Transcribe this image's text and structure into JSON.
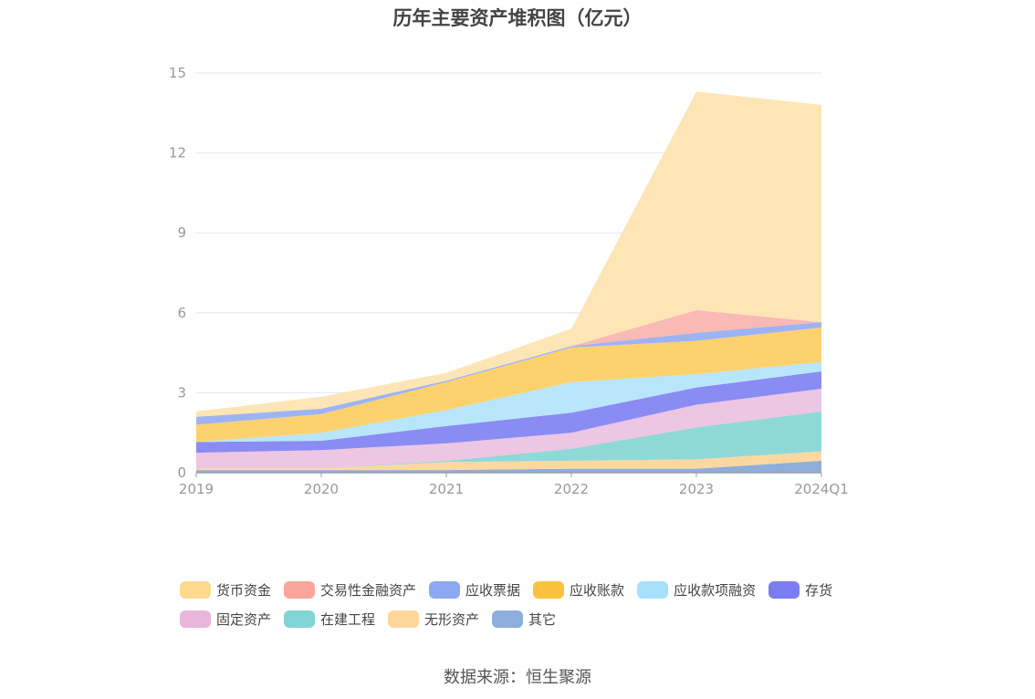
{
  "chart_data": {
    "type": "area",
    "stacked": true,
    "title": "历年主要资产堆积图（亿元）",
    "categories": [
      "2019",
      "2020",
      "2021",
      "2022",
      "2023",
      "2024Q1"
    ],
    "y_ticks": [
      0,
      3,
      6,
      9,
      12,
      15
    ],
    "ylim": [
      0,
      15
    ],
    "grid": true,
    "legend_position": "bottom",
    "series": [
      {
        "name": "其它",
        "color": "#8eaedb",
        "values": [
          0.1,
          0.1,
          0.1,
          0.15,
          0.15,
          0.45
        ]
      },
      {
        "name": "无形资产",
        "color": "#fcd8a0",
        "values": [
          0.05,
          0.05,
          0.3,
          0.3,
          0.35,
          0.35
        ]
      },
      {
        "name": "在建工程",
        "color": "#8fd9d8",
        "values": [
          0.0,
          0.0,
          0.05,
          0.45,
          1.2,
          1.5
        ]
      },
      {
        "name": "固定资产",
        "color": "#ecc6e2",
        "values": [
          0.6,
          0.7,
          0.65,
          0.6,
          0.85,
          0.85
        ]
      },
      {
        "name": "存货",
        "color": "#8a8cf3",
        "values": [
          0.4,
          0.35,
          0.65,
          0.75,
          0.65,
          0.65
        ]
      },
      {
        "name": "应收款项融资",
        "color": "#b8e6fb",
        "values": [
          0.0,
          0.3,
          0.6,
          1.15,
          0.5,
          0.35
        ]
      },
      {
        "name": "应收账款",
        "color": "#fdd26e",
        "values": [
          0.65,
          0.7,
          1.05,
          1.3,
          1.25,
          1.3
        ]
      },
      {
        "name": "应收票据",
        "color": "#9db3f5",
        "values": [
          0.3,
          0.2,
          0.05,
          0.05,
          0.3,
          0.2
        ]
      },
      {
        "name": "交易性金融资产",
        "color": "#f9b9b4",
        "values": [
          0.0,
          0.0,
          0.0,
          0.0,
          0.85,
          0.0
        ]
      },
      {
        "name": "货币资金",
        "color": "#fde5b6",
        "values": [
          0.2,
          0.45,
          0.3,
          0.65,
          8.2,
          8.15
        ]
      }
    ]
  },
  "legend": {
    "rows": [
      [
        {
          "label": "货币资金",
          "color": "#fdd98e"
        },
        {
          "label": "交易性金融资产",
          "color": "#f9a59c"
        },
        {
          "label": "应收票据",
          "color": "#8ca8f3"
        },
        {
          "label": "应收账款",
          "color": "#fbc33d"
        },
        {
          "label": "应收款项融资",
          "color": "#a6e0fb"
        },
        {
          "label": "存货",
          "color": "#7b7cf0"
        }
      ],
      [
        {
          "label": "固定资产",
          "color": "#e8b6da"
        },
        {
          "label": "在建工程",
          "color": "#82d5d5"
        },
        {
          "label": "无形资产",
          "color": "#fdd79a"
        },
        {
          "label": "其它",
          "color": "#8eaedb"
        }
      ]
    ]
  },
  "source": "数据来源：恒生聚源"
}
